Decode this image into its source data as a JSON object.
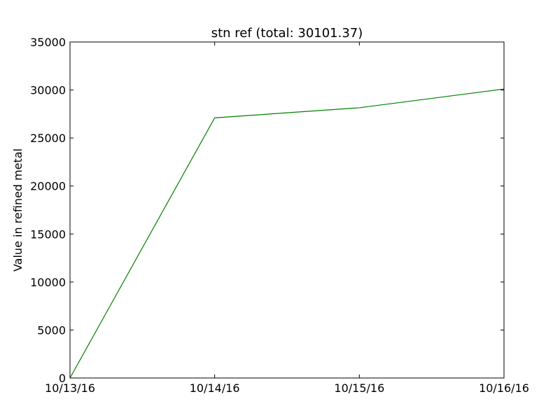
{
  "chart_data": {
    "type": "line",
    "title": "stn ref (total: 30101.37)",
    "xlabel": "",
    "ylabel": "Value in refined metal",
    "x": [
      "10/13/16",
      "10/14/16",
      "10/15/16",
      "10/16/16"
    ],
    "xticks": [
      "10/13/16",
      "10/14/16",
      "10/15/16",
      "10/16/16"
    ],
    "yticks": [
      0,
      5000,
      10000,
      15000,
      20000,
      25000,
      30000,
      35000
    ],
    "ylim": [
      0,
      35000
    ],
    "grid": false,
    "series": [
      {
        "values": [
          0,
          27100,
          28150,
          30101.37
        ],
        "color": "#008000"
      }
    ]
  }
}
